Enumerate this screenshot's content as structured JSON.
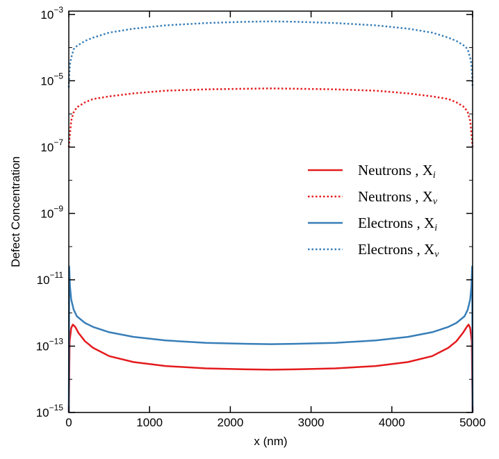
{
  "chart_data": {
    "type": "line",
    "xlabel": "x (nm)",
    "ylabel": "Defect Concentration",
    "xlim": [
      0,
      5000
    ],
    "ylim_exponent": [
      -15,
      -2.9
    ],
    "y_scale": "log",
    "x_ticks": [
      0,
      1000,
      2000,
      3000,
      4000,
      5000
    ],
    "x_tick_labels": [
      "0",
      "1000",
      "2000",
      "3000",
      "4000",
      "5000"
    ],
    "y_tick_exponents": [
      -15,
      -13,
      -11,
      -9,
      -7,
      -5,
      -3
    ],
    "y_tick_labels": [
      {
        "base": "10",
        "exp": "−15"
      },
      {
        "base": "10",
        "exp": "−13"
      },
      {
        "base": "10",
        "exp": "−11"
      },
      {
        "base": "10",
        "exp": "−9"
      },
      {
        "base": "10",
        "exp": "−7"
      },
      {
        "base": "10",
        "exp": "−5"
      },
      {
        "base": "10",
        "exp": "−3"
      }
    ],
    "grid": false,
    "legend_placement": "center-right",
    "series": [
      {
        "name": "Neutrons , X",
        "sub": "i",
        "color": "#e41a1c",
        "style": "solid",
        "x": [
          0,
          10,
          30,
          50,
          80,
          120,
          200,
          300,
          500,
          800,
          1200,
          1700,
          2200,
          2500,
          2800,
          3300,
          3800,
          4200,
          4500,
          4700,
          4800,
          4880,
          4920,
          4950,
          4970,
          4990,
          5000
        ],
        "log10y": [
          -15,
          -12.85,
          -12.45,
          -12.35,
          -12.42,
          -12.6,
          -12.85,
          -13.05,
          -13.3,
          -13.48,
          -13.6,
          -13.67,
          -13.7,
          -13.71,
          -13.7,
          -13.67,
          -13.6,
          -13.48,
          -13.3,
          -13.05,
          -12.85,
          -12.6,
          -12.45,
          -12.35,
          -12.45,
          -12.85,
          -15
        ]
      },
      {
        "name": "Neutrons , X",
        "sub": "v",
        "color": "#e41a1c",
        "style": "dotted",
        "x": [
          0,
          10,
          30,
          60,
          100,
          200,
          300,
          500,
          800,
          1200,
          1700,
          2200,
          2500,
          2800,
          3300,
          3800,
          4200,
          4500,
          4700,
          4800,
          4900,
          4940,
          4970,
          4990,
          5000
        ],
        "log10y": [
          -7.0,
          -6.7,
          -6.2,
          -5.95,
          -5.8,
          -5.65,
          -5.55,
          -5.47,
          -5.38,
          -5.3,
          -5.26,
          -5.24,
          -5.23,
          -5.24,
          -5.26,
          -5.3,
          -5.38,
          -5.47,
          -5.55,
          -5.65,
          -5.8,
          -5.95,
          -6.2,
          -6.7,
          -7.0
        ]
      },
      {
        "name": "Electrons , X",
        "sub": "i",
        "color": "#377eb8",
        "style": "solid",
        "x": [
          0,
          5,
          15,
          30,
          60,
          100,
          200,
          300,
          500,
          800,
          1200,
          1700,
          2200,
          2500,
          2800,
          3300,
          3800,
          4200,
          4500,
          4700,
          4800,
          4900,
          4940,
          4970,
          4985,
          4995,
          5000
        ],
        "log10y": [
          -15,
          -10.6,
          -11.2,
          -11.6,
          -11.9,
          -12.1,
          -12.3,
          -12.42,
          -12.58,
          -12.72,
          -12.83,
          -12.9,
          -12.93,
          -12.94,
          -12.93,
          -12.9,
          -12.83,
          -12.72,
          -12.58,
          -12.42,
          -12.3,
          -12.1,
          -11.9,
          -11.6,
          -11.2,
          -10.6,
          -15
        ]
      },
      {
        "name": "Electrons , X",
        "sub": "v",
        "color": "#377eb8",
        "style": "dotted",
        "x": [
          0,
          5,
          15,
          30,
          60,
          100,
          200,
          300,
          500,
          800,
          1200,
          1700,
          2200,
          2500,
          2800,
          3300,
          3800,
          4200,
          4500,
          4700,
          4800,
          4900,
          4940,
          4970,
          4985,
          4995,
          5000
        ],
        "log10y": [
          -5.2,
          -4.85,
          -4.5,
          -4.3,
          -4.05,
          -3.95,
          -3.8,
          -3.7,
          -3.55,
          -3.43,
          -3.33,
          -3.26,
          -3.22,
          -3.21,
          -3.22,
          -3.26,
          -3.33,
          -3.43,
          -3.55,
          -3.7,
          -3.8,
          -3.95,
          -4.05,
          -4.3,
          -4.5,
          -4.85,
          -5.2
        ]
      }
    ]
  }
}
